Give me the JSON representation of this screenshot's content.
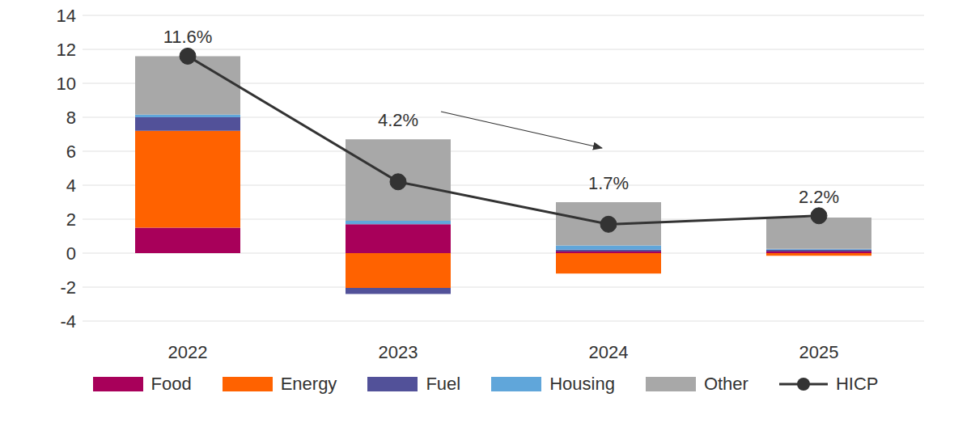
{
  "chart_data": {
    "type": "bar",
    "stacked": true,
    "categories": [
      "2022",
      "2023",
      "2024",
      "2025"
    ],
    "series": [
      {
        "name": "Food",
        "color": "#a8005a",
        "values": [
          1.5,
          1.7,
          0.1,
          0.1
        ]
      },
      {
        "name": "Energy",
        "color": "#ff6200",
        "values": [
          5.7,
          -2.05,
          -1.2,
          -0.15
        ]
      },
      {
        "name": "Fuel",
        "color": "#525199",
        "values": [
          0.8,
          -0.35,
          0.1,
          0.1
        ]
      },
      {
        "name": "Housing",
        "color": "#60a6da",
        "values": [
          0.15,
          0.2,
          0.25,
          0.05
        ]
      },
      {
        "name": "Other",
        "color": "#a8a8a8",
        "values": [
          3.45,
          4.8,
          2.55,
          1.85
        ]
      },
      {
        "name": "HICP",
        "type": "line",
        "color": "#333333",
        "marker": "circle",
        "values": [
          11.6,
          4.2,
          1.7,
          2.2
        ],
        "value_labels": [
          "11.6%",
          "4.2%",
          "1.7%",
          "2.2%"
        ],
        "data_labels": true
      }
    ],
    "ylim": [
      -4,
      14
    ],
    "yticks": [
      -4,
      -2,
      0,
      2,
      4,
      6,
      8,
      10,
      12,
      14
    ],
    "grid": true,
    "legend": "bottom"
  }
}
